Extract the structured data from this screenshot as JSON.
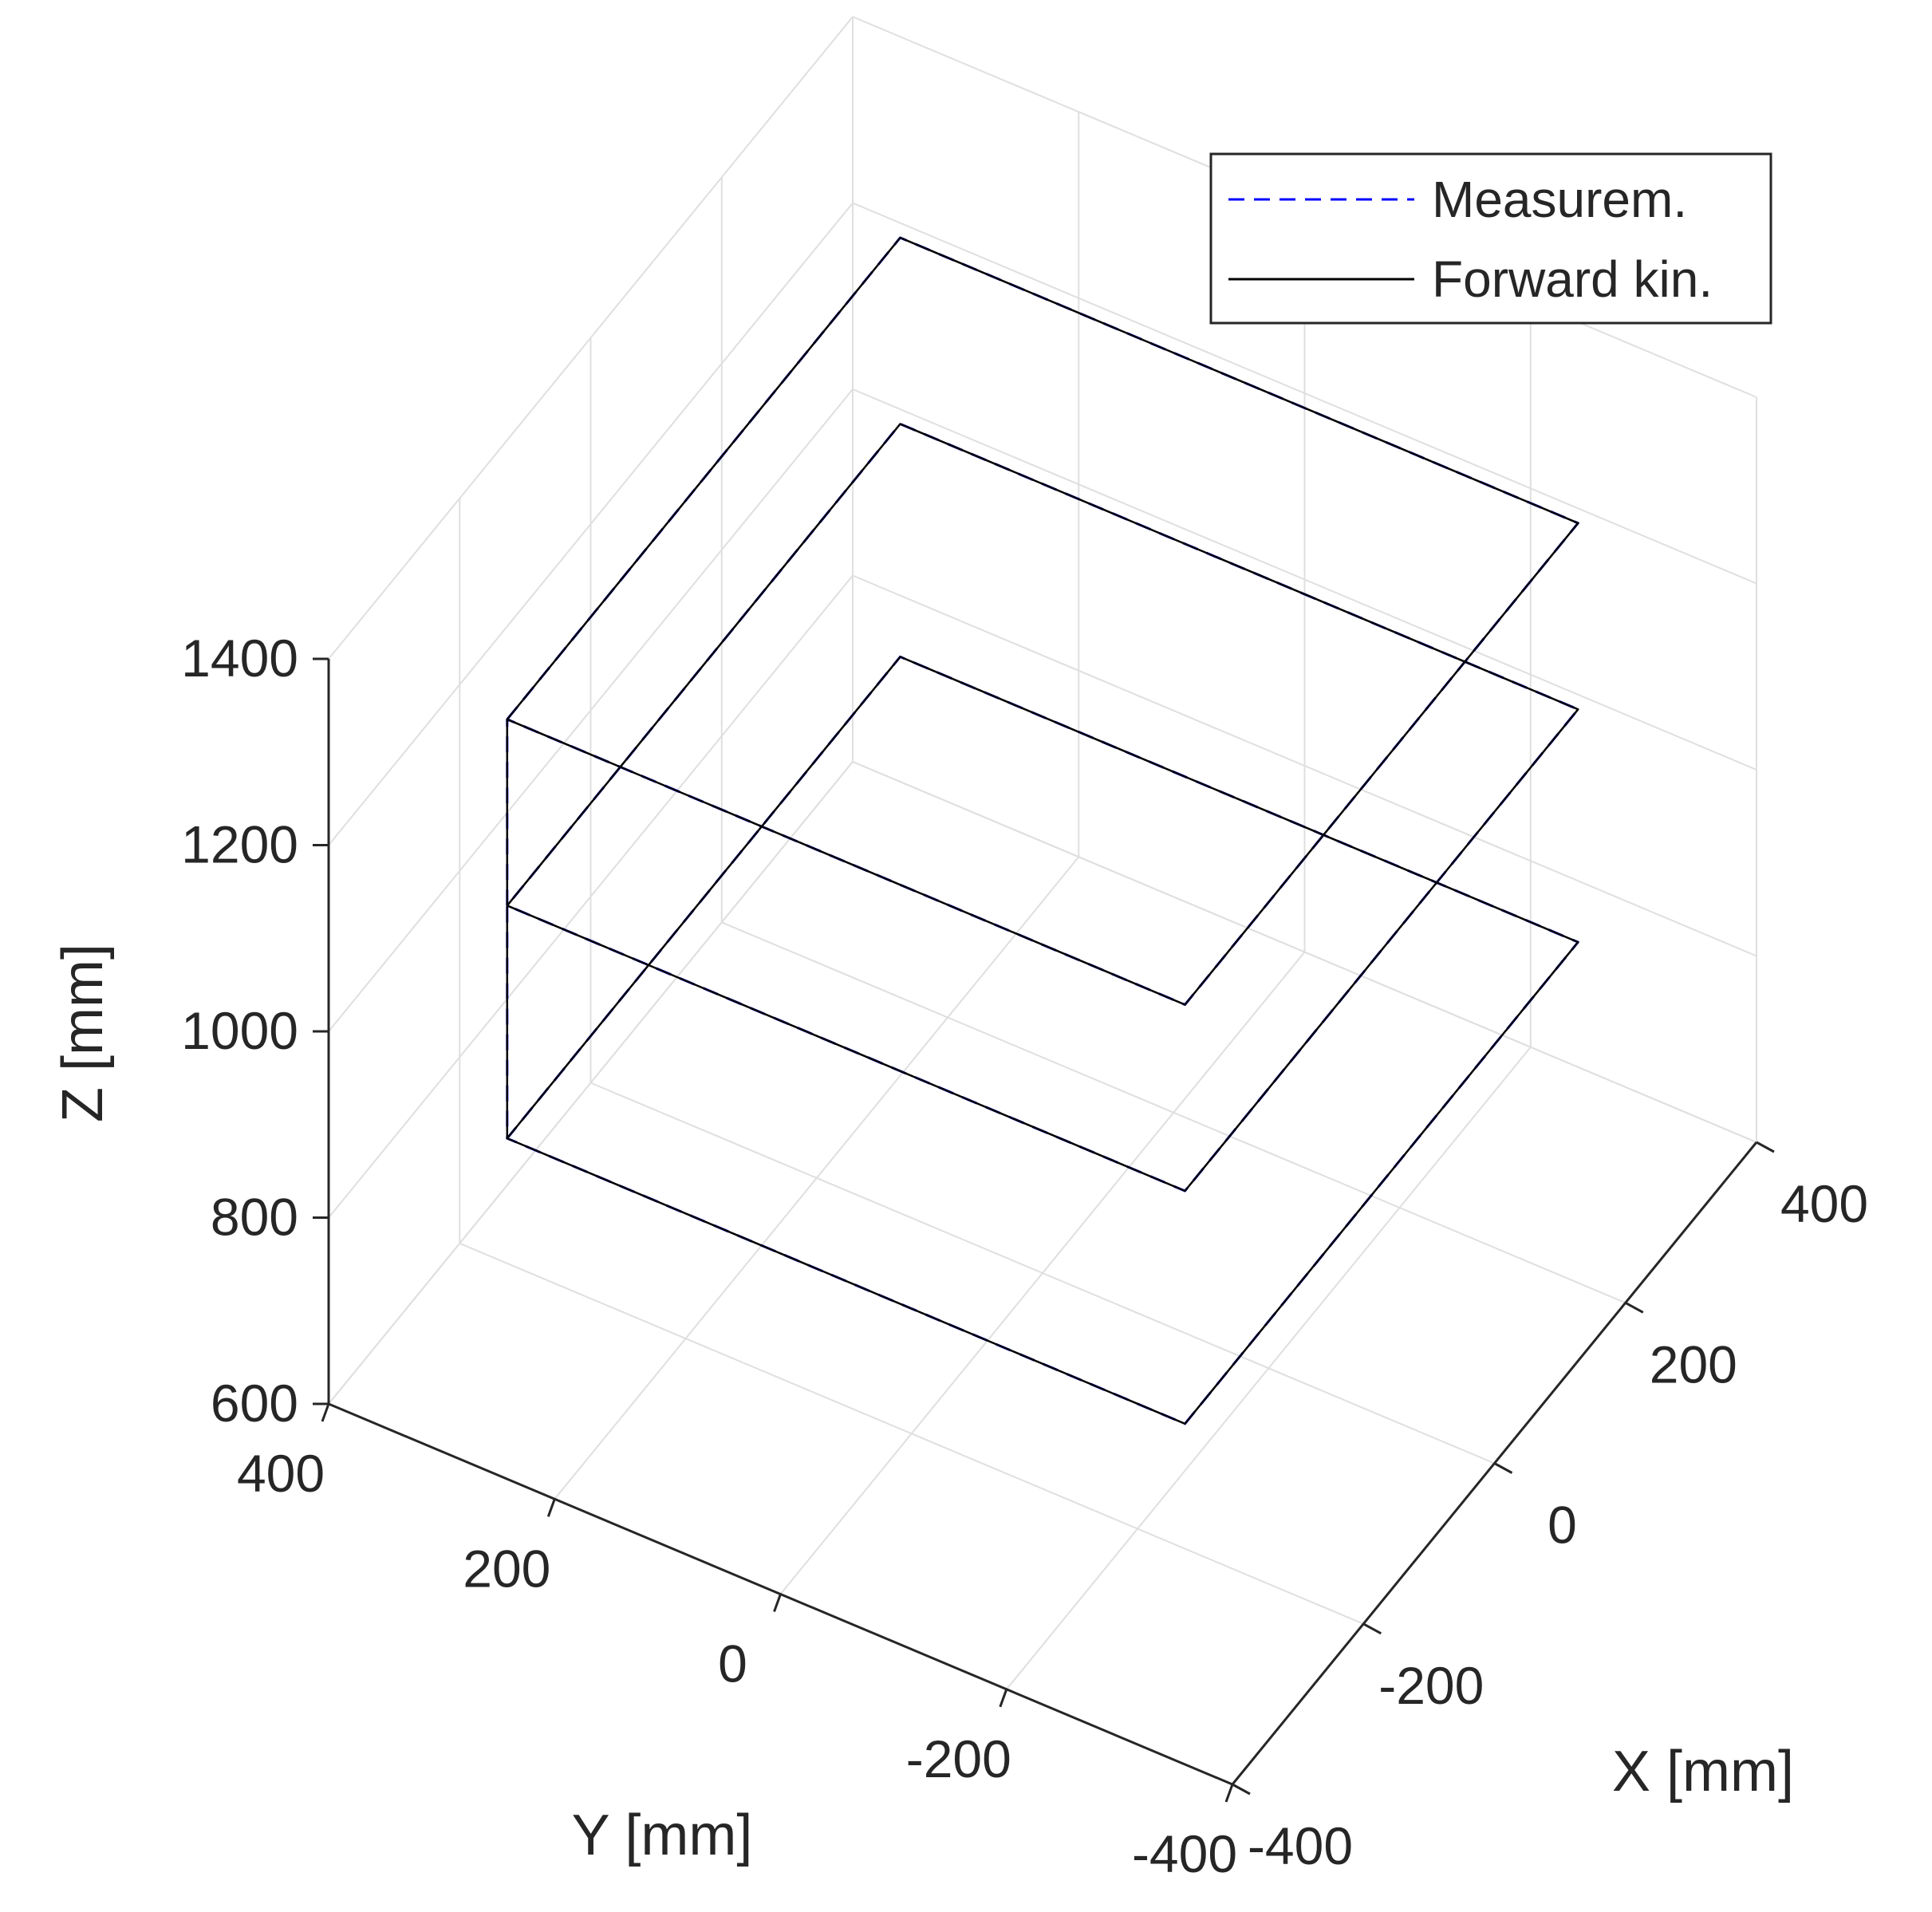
{
  "chart_data": {
    "type": "line3d",
    "title": "",
    "xlabel": "X [mm]",
    "ylabel": "Y [mm]",
    "zlabel": "Z [mm]",
    "xlim": [
      -400,
      400
    ],
    "ylim": [
      -400,
      400
    ],
    "zlim": [
      600,
      1400
    ],
    "x_ticks": [
      -400,
      -200,
      0,
      200,
      400
    ],
    "y_ticks": [
      -400,
      -200,
      0,
      200,
      400
    ],
    "z_ticks": [
      600,
      800,
      1000,
      1200,
      1400
    ],
    "x_tick_labels": [
      "-400",
      "-200",
      "0",
      "200",
      "400"
    ],
    "y_tick_labels": [
      "-400",
      "-200",
      "0",
      "200",
      "400"
    ],
    "z_tick_labels": [
      "600",
      "800",
      "1000",
      "1200",
      "1400"
    ],
    "grid": true,
    "legend_position": "top-right",
    "series": [
      {
        "name": "Measurem.",
        "color": "#0000ff",
        "style": "dashed",
        "points": [
          [
            -300,
            300,
            1300
          ],
          [
            300,
            300,
            1300
          ],
          [
            300,
            -300,
            1300
          ],
          [
            -300,
            -300,
            1300
          ],
          [
            -300,
            300,
            1300
          ],
          [
            -300,
            300,
            1100
          ],
          [
            300,
            300,
            1100
          ],
          [
            300,
            -300,
            1100
          ],
          [
            -300,
            -300,
            1100
          ],
          [
            -300,
            300,
            1100
          ],
          [
            -300,
            300,
            850
          ],
          [
            300,
            300,
            850
          ],
          [
            300,
            -300,
            850
          ],
          [
            -300,
            -300,
            850
          ],
          [
            -300,
            300,
            850
          ]
        ]
      },
      {
        "name": "Forward kin.",
        "color": "#000000",
        "style": "solid",
        "points": [
          [
            -300,
            300,
            1300
          ],
          [
            300,
            300,
            1300
          ],
          [
            300,
            -300,
            1300
          ],
          [
            -300,
            -300,
            1300
          ],
          [
            -300,
            300,
            1300
          ],
          [
            -300,
            300,
            1100
          ],
          [
            300,
            300,
            1100
          ],
          [
            300,
            -300,
            1100
          ],
          [
            -300,
            -300,
            1100
          ],
          [
            -300,
            300,
            1100
          ],
          [
            -300,
            300,
            850
          ],
          [
            300,
            300,
            850
          ],
          [
            300,
            -300,
            850
          ],
          [
            -300,
            -300,
            850
          ],
          [
            -300,
            300,
            850
          ]
        ]
      }
    ]
  }
}
